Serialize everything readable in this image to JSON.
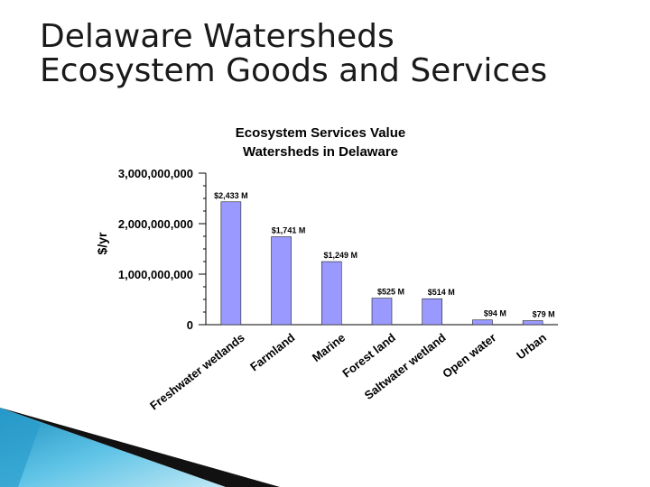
{
  "slide": {
    "title_line1": "Delaware Watersheds",
    "title_line2": "Ecosystem Goods and Services"
  },
  "chart_data": {
    "type": "bar",
    "title_line1": "Ecosystem Services Value",
    "title_line2": "Watersheds in Delaware",
    "ylabel": "$/yr",
    "xlabel": "",
    "ylim": [
      0,
      3000000000
    ],
    "yticks": [
      0,
      1000000000,
      2000000000,
      3000000000
    ],
    "ytick_labels": [
      "0",
      "1,000,000,000",
      "2,000,000,000",
      "3,000,000,000"
    ],
    "categories": [
      "Freshwater wetlands",
      "Farmland",
      "Marine",
      "Forest land",
      "Saltwater wetland",
      "Open water",
      "Urban"
    ],
    "values": [
      2433000000,
      1741000000,
      1249000000,
      525000000,
      514000000,
      94000000,
      79000000
    ],
    "data_labels": [
      "$2,433 M",
      "$1,741 M",
      "$1,249 M",
      "$525 M",
      "$514 M",
      "$94 M",
      "$79 M"
    ],
    "bar_color": "#9999ff",
    "grid": false,
    "legend": "none"
  }
}
